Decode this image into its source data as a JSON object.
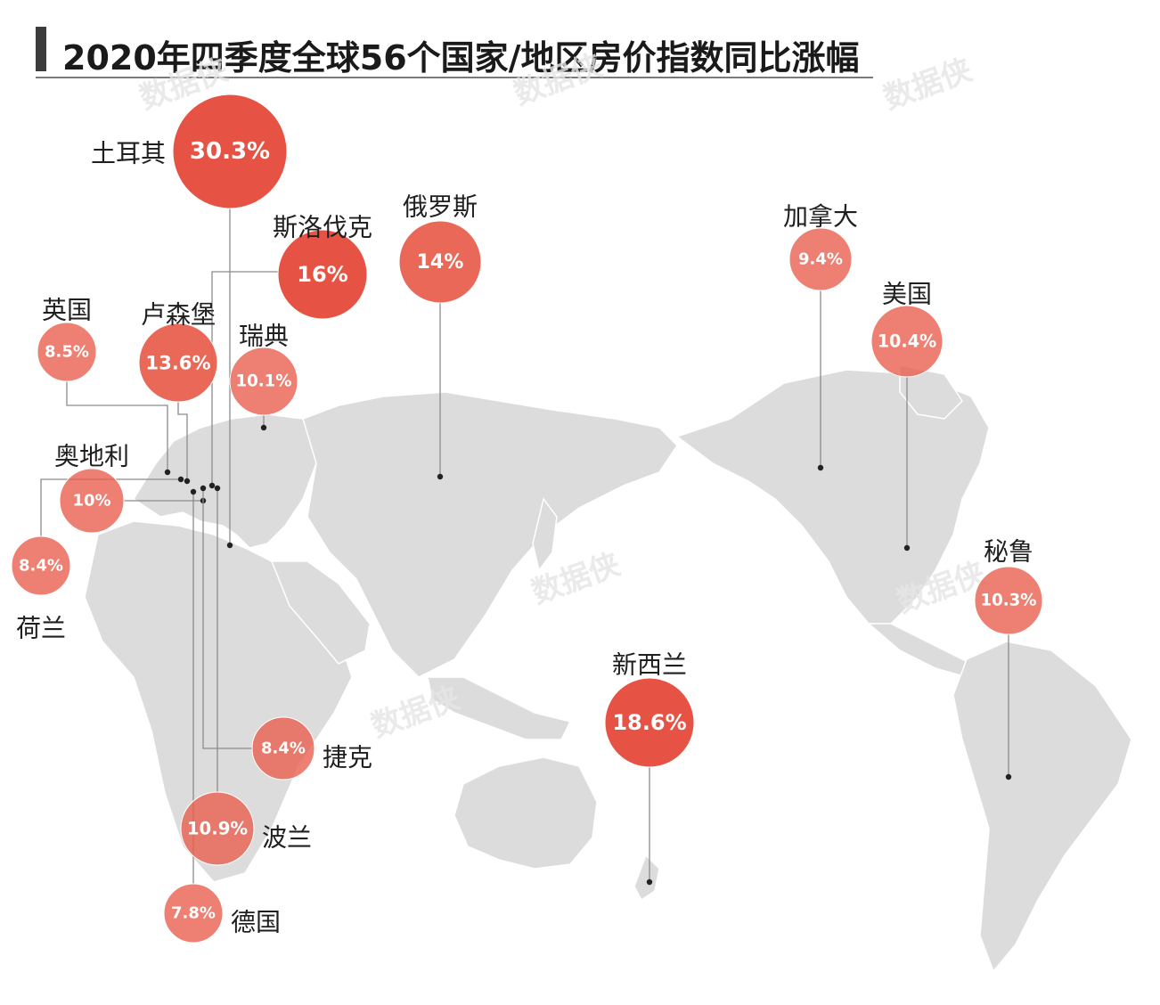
{
  "title": "2020年四季度全球56个国家/地区房价指数同比涨幅",
  "watermark": "数据侠",
  "colors": {
    "land": "#dcdcdc",
    "land_stroke": "#ffffff",
    "leader": "#8c8c8c",
    "bubble": "#e8604f",
    "bubble_high": "#e5493a",
    "bubble_stroke": "#ffffff"
  },
  "chart_data": {
    "type": "bubble-map",
    "title": "2020年四季度全球56个国家/地区房价指数同比涨幅",
    "unit": "%",
    "entries": [
      {
        "country": "土耳其",
        "value": 30.3,
        "label": "30.3%"
      },
      {
        "country": "斯洛伐克",
        "value": 16,
        "label": "16%"
      },
      {
        "country": "俄罗斯",
        "value": 14,
        "label": "14%"
      },
      {
        "country": "加拿大",
        "value": 9.4,
        "label": "9.4%"
      },
      {
        "country": "美国",
        "value": 10.4,
        "label": "10.4%"
      },
      {
        "country": "英国",
        "value": 8.5,
        "label": "8.5%"
      },
      {
        "country": "卢森堡",
        "value": 13.6,
        "label": "13.6%"
      },
      {
        "country": "瑞典",
        "value": 10.1,
        "label": "10.1%"
      },
      {
        "country": "奥地利",
        "value": 10,
        "label": "10%"
      },
      {
        "country": "荷兰",
        "value": 8.4,
        "label": "8.4%"
      },
      {
        "country": "秘鲁",
        "value": 10.3,
        "label": "10.3%"
      },
      {
        "country": "新西兰",
        "value": 18.6,
        "label": "18.6%"
      },
      {
        "country": "捷克",
        "value": 8.4,
        "label": "8.4%"
      },
      {
        "country": "波兰",
        "value": 10.9,
        "label": "10.9%"
      },
      {
        "country": "德国",
        "value": 7.8,
        "label": "7.8%"
      }
    ]
  }
}
